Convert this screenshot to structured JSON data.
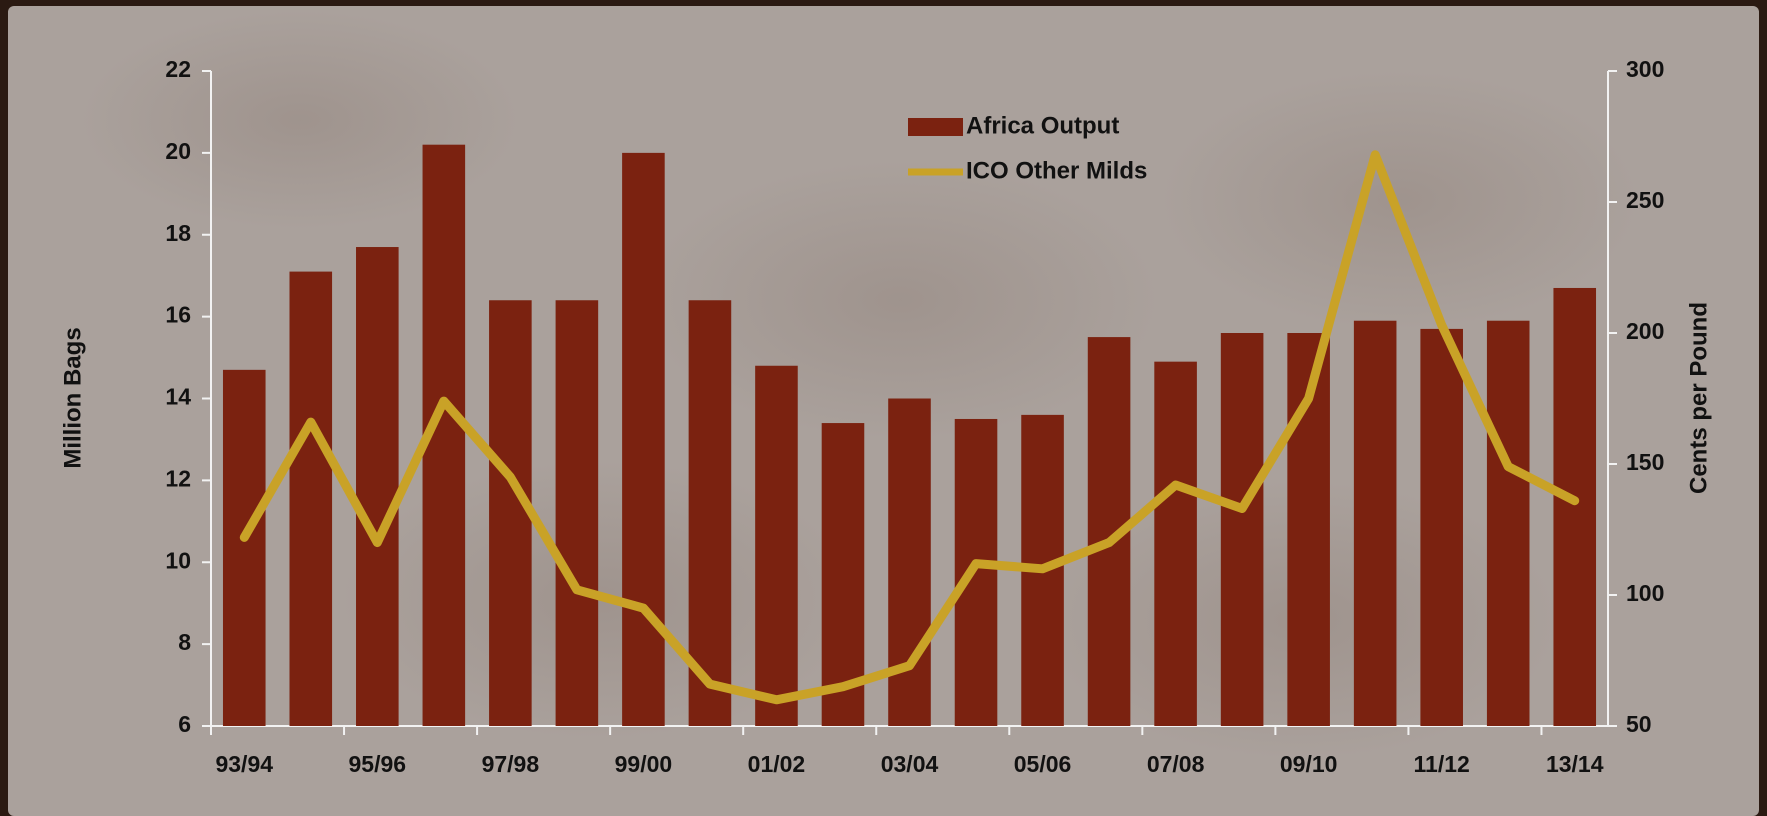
{
  "chart_data": {
    "type": "bar-line",
    "categories": [
      "93/94",
      null,
      "95/96",
      null,
      "97/98",
      null,
      "99/00",
      null,
      "01/02",
      null,
      "03/04",
      null,
      "05/06",
      null,
      "07/08",
      null,
      "09/10",
      null,
      "11/12",
      null,
      "13/14"
    ],
    "series": [
      {
        "name": "Africa Output",
        "type": "bar",
        "color": "#7b2210",
        "values": [
          14.7,
          17.1,
          17.7,
          20.2,
          16.4,
          16.4,
          20.0,
          16.4,
          14.8,
          13.4,
          14.0,
          13.5,
          13.6,
          15.5,
          14.9,
          15.6,
          15.6,
          15.9,
          15.7,
          15.9,
          16.7
        ]
      },
      {
        "name": "ICO Other Milds",
        "type": "line",
        "axis": "y2",
        "color": "#c9a227",
        "values": [
          122,
          166,
          120,
          174,
          145,
          102,
          95,
          66,
          60,
          65,
          73,
          112,
          110,
          120,
          142,
          133,
          175,
          268,
          203,
          149,
          136
        ]
      }
    ],
    "ylabel": "Million Bags",
    "y2label": "Cents per Pound",
    "ylim": [
      6,
      22
    ],
    "yticks": [
      6,
      8,
      10,
      12,
      14,
      16,
      18,
      20,
      22
    ],
    "y2lim": [
      50,
      300
    ],
    "y2ticks": [
      50,
      100,
      150,
      200,
      250,
      300
    ],
    "legend": "top"
  }
}
